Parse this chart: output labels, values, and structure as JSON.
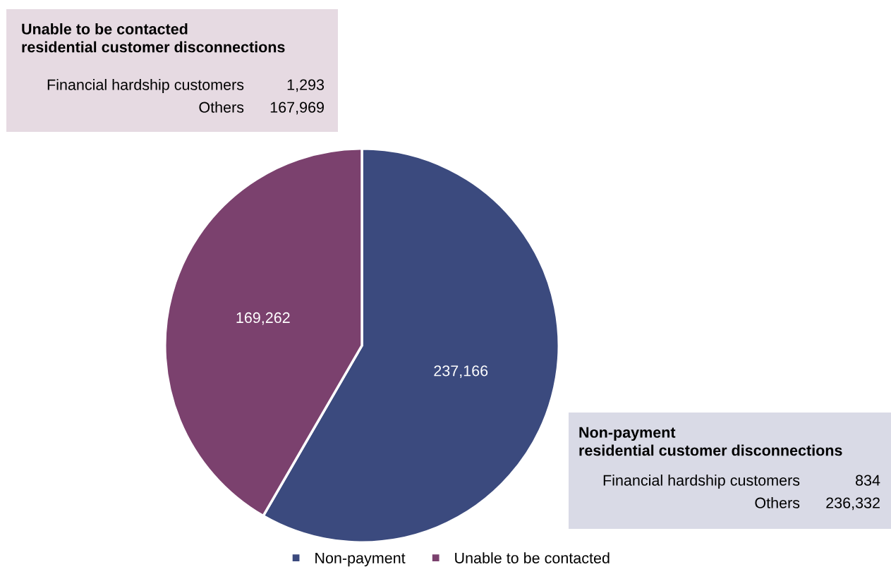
{
  "chart_data": {
    "type": "pie",
    "categories": [
      "Non-payment",
      "Unable to be contacted"
    ],
    "values": [
      237166,
      169262
    ],
    "colors": [
      "#3b4a7e",
      "#7b416e"
    ],
    "value_labels": [
      "237,166",
      "169,262"
    ],
    "legend": "bottom",
    "annotations": [
      "Unable to be contacted\nresidential customer disconnections",
      "Financial hardship customers",
      "1,293",
      "Others",
      "167,969",
      "Non-payment\nresidential customer disconnections",
      "Financial hardship customers",
      "834",
      "Others",
      "236,332"
    ]
  }
}
